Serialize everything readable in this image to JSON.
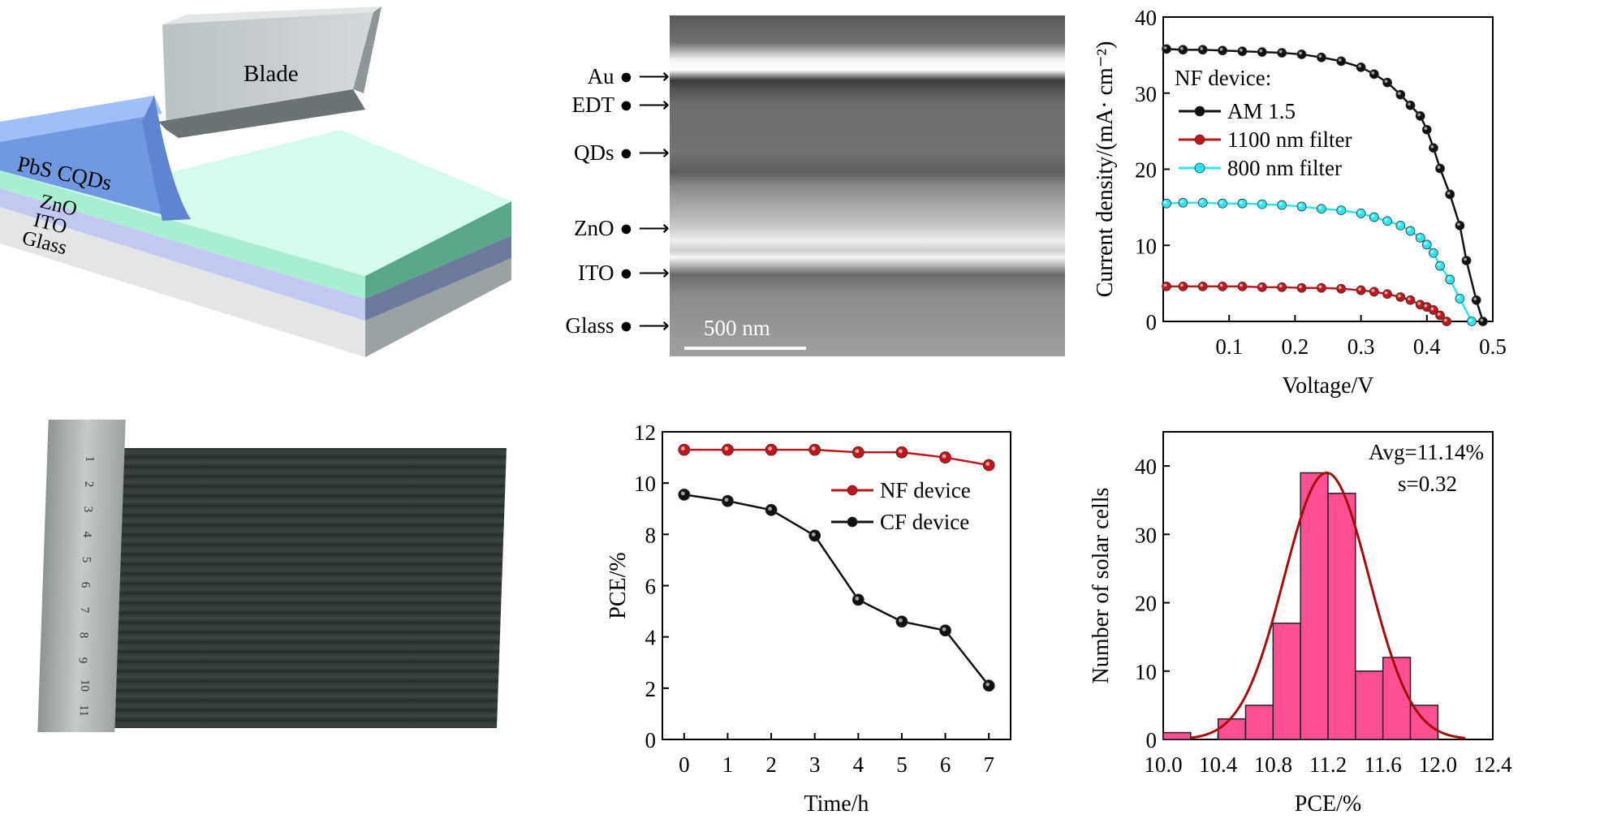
{
  "schematic": {
    "blade_label": "Blade",
    "layers": [
      "PbS CQDs",
      "ZnO",
      "ITO",
      "Glass"
    ]
  },
  "sem": {
    "labels": [
      "Au",
      "EDT",
      "QDs",
      "ZnO",
      "ITO",
      "Glass"
    ],
    "scale_bar": "500 nm"
  },
  "photo": {
    "ruler_numbers": [
      "1",
      "2",
      "3",
      "4",
      "5",
      "6",
      "7",
      "8",
      "9",
      "10",
      "11"
    ]
  },
  "colors": {
    "black": "#111111",
    "red": "#c0161b",
    "cyan": "#29e6f0",
    "bar": "#ff4f93",
    "fit": "#a50d0d"
  },
  "chart_data": [
    {
      "type": "line",
      "xlabel": "Voltage/V",
      "ylabel": "Current density/(mA· cm⁻²)",
      "xlim": [
        0,
        0.5
      ],
      "ylim": [
        0,
        40
      ],
      "xticks": [
        "0.1",
        "0.2",
        "0.3",
        "0.4",
        "0.5"
      ],
      "yticks": [
        "0",
        "10",
        "20",
        "30",
        "40"
      ],
      "legend_title": "NF device:",
      "legend_position": "upper-left",
      "series": [
        {
          "name": "AM 1.5",
          "color": "#111111",
          "x": [
            0.005,
            0.03,
            0.06,
            0.09,
            0.12,
            0.15,
            0.18,
            0.21,
            0.24,
            0.27,
            0.3,
            0.32,
            0.34,
            0.36,
            0.375,
            0.39,
            0.4,
            0.41,
            0.42,
            0.435,
            0.45,
            0.46,
            0.475,
            0.485
          ],
          "y": [
            35.8,
            35.7,
            35.7,
            35.6,
            35.5,
            35.4,
            35.3,
            35.1,
            34.7,
            34.2,
            33.4,
            32.5,
            31.4,
            29.8,
            28.4,
            27.0,
            25.2,
            22.8,
            20.1,
            16.7,
            12.6,
            8.0,
            2.8,
            0
          ]
        },
        {
          "name": "1100 nm filter",
          "color": "#c0161b",
          "x": [
            0.005,
            0.03,
            0.06,
            0.09,
            0.12,
            0.15,
            0.18,
            0.21,
            0.24,
            0.27,
            0.3,
            0.32,
            0.34,
            0.36,
            0.375,
            0.39,
            0.4,
            0.41,
            0.42,
            0.43
          ],
          "y": [
            4.6,
            4.6,
            4.6,
            4.6,
            4.6,
            4.5,
            4.5,
            4.4,
            4.4,
            4.3,
            4.1,
            3.9,
            3.6,
            3.2,
            2.8,
            2.2,
            1.9,
            1.5,
            0.8,
            0
          ]
        },
        {
          "name": "800 nm filter",
          "color": "#29e6f0",
          "x": [
            0.005,
            0.03,
            0.06,
            0.09,
            0.12,
            0.15,
            0.18,
            0.21,
            0.24,
            0.27,
            0.3,
            0.32,
            0.34,
            0.36,
            0.375,
            0.39,
            0.4,
            0.41,
            0.42,
            0.435,
            0.45,
            0.468
          ],
          "y": [
            15.5,
            15.6,
            15.6,
            15.5,
            15.5,
            15.4,
            15.3,
            15.1,
            14.8,
            14.6,
            14.2,
            13.7,
            13.2,
            12.6,
            11.9,
            11.0,
            10.1,
            9.0,
            7.3,
            5.5,
            3.0,
            0
          ]
        }
      ]
    },
    {
      "type": "line",
      "xlabel": "Time/h",
      "ylabel": "PCE/%",
      "xlim": [
        -0.5,
        7.5
      ],
      "ylim": [
        0,
        12
      ],
      "xticks": [
        "0",
        "1",
        "2",
        "3",
        "4",
        "5",
        "6",
        "7"
      ],
      "yticks": [
        "0",
        "2",
        "4",
        "6",
        "8",
        "10",
        "12"
      ],
      "legend_position": "upper-right",
      "series": [
        {
          "name": "NF device",
          "color": "#c0161b",
          "x": [
            0,
            1,
            2,
            3,
            4,
            5,
            6,
            7
          ],
          "y": [
            11.3,
            11.3,
            11.3,
            11.3,
            11.2,
            11.2,
            11.0,
            10.7
          ]
        },
        {
          "name": "CF device",
          "color": "#111111",
          "x": [
            0,
            1,
            2,
            3,
            4,
            5,
            6,
            7
          ],
          "y": [
            9.55,
            9.3,
            8.95,
            7.95,
            5.45,
            4.6,
            4.25,
            2.1
          ]
        }
      ]
    },
    {
      "type": "bar",
      "xlabel": "PCE/%",
      "ylabel": "Number of solar cells",
      "xlim": [
        10.0,
        12.4
      ],
      "ylim": [
        0,
        45
      ],
      "xticks": [
        "10.0",
        "10.4",
        "10.8",
        "11.2",
        "11.6",
        "12.0",
        "12.4"
      ],
      "yticks": [
        "0",
        "10",
        "20",
        "30",
        "40"
      ],
      "bin_edges": [
        10.0,
        10.2,
        10.4,
        10.6,
        10.8,
        11.0,
        11.2,
        11.4,
        11.6,
        11.8,
        12.0
      ],
      "values": [
        1,
        0,
        3,
        5,
        17,
        39,
        36,
        10,
        12,
        5
      ],
      "fit": {
        "type": "gaussian",
        "center": 11.19,
        "sigma": 0.31,
        "peak": 39,
        "range": [
          10.2,
          12.2
        ]
      },
      "annotations": [
        "Avg=11.14%",
        "s=0.32"
      ]
    }
  ]
}
